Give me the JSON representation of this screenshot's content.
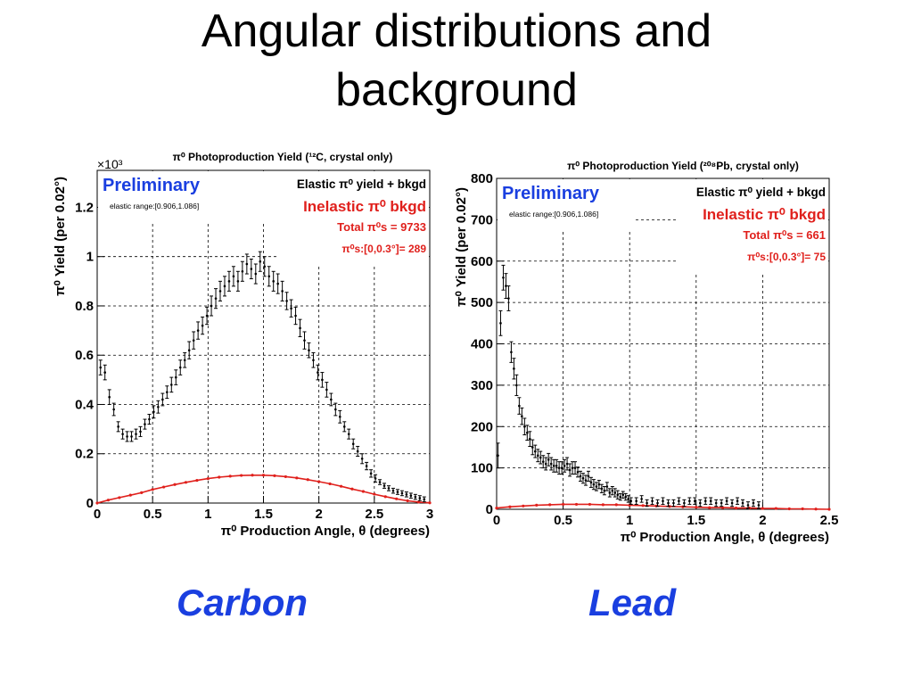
{
  "slide": {
    "title_line1": "Angular distributions and",
    "title_line2": "background"
  },
  "captions": {
    "carbon": "Carbon",
    "lead": "Lead"
  },
  "colors": {
    "points": "#000000",
    "inelastic": "#e0201c",
    "preliminary": "#1a3fe0",
    "caption": "#1a3fe0"
  },
  "chart_data": [
    {
      "type": "scatter",
      "title": "π⁰ Photoproduction Yield (¹²C, crystal only)",
      "xlabel": "π⁰ Production Angle, θ (degrees)",
      "ylabel": "π⁰ Yield (per 0.02°)",
      "y_multiplier": "×10³",
      "xlim": [
        0,
        3
      ],
      "ylim": [
        0,
        1.35
      ],
      "x_ticks": [
        0,
        0.5,
        1,
        1.5,
        2,
        2.5,
        3
      ],
      "x_tick_labels": [
        "0",
        "0.5",
        "1",
        "1.5",
        "2",
        "2.5",
        "3"
      ],
      "y_ticks": [
        0,
        0.2,
        0.4,
        0.6,
        0.8,
        1,
        1.2
      ],
      "y_tick_labels": [
        "0",
        "0.2",
        "0.4",
        "0.6",
        "0.8",
        "1",
        "1.2"
      ],
      "grid": "dashed",
      "legend": {
        "preliminary": "Preliminary",
        "elastic_range": "elastic range:[0.906,1.086]",
        "elastic": "Elastic π⁰ yield + bkgd",
        "inelastic": "Inelastic π⁰ bkgd",
        "total": "Total π⁰s = 9733",
        "small_angle": "π⁰s:[0,0.3°]= 289"
      },
      "series": [
        {
          "name": "Elastic π⁰ yield + bkgd",
          "x": [
            0.03,
            0.07,
            0.11,
            0.15,
            0.19,
            0.23,
            0.27,
            0.31,
            0.35,
            0.39,
            0.43,
            0.47,
            0.51,
            0.55,
            0.59,
            0.63,
            0.67,
            0.71,
            0.75,
            0.79,
            0.83,
            0.87,
            0.91,
            0.95,
            0.99,
            1.03,
            1.07,
            1.11,
            1.15,
            1.19,
            1.23,
            1.27,
            1.31,
            1.35,
            1.39,
            1.43,
            1.47,
            1.51,
            1.55,
            1.59,
            1.63,
            1.67,
            1.71,
            1.75,
            1.79,
            1.83,
            1.87,
            1.91,
            1.95,
            1.99,
            2.03,
            2.07,
            2.11,
            2.15,
            2.19,
            2.23,
            2.27,
            2.31,
            2.35,
            2.39,
            2.43,
            2.47,
            2.51,
            2.55,
            2.59,
            2.63,
            2.67,
            2.71,
            2.75,
            2.79,
            2.83,
            2.87,
            2.91,
            2.95
          ],
          "y": [
            0.55,
            0.53,
            0.43,
            0.38,
            0.31,
            0.28,
            0.27,
            0.27,
            0.28,
            0.29,
            0.32,
            0.34,
            0.37,
            0.39,
            0.42,
            0.45,
            0.48,
            0.51,
            0.55,
            0.58,
            0.62,
            0.66,
            0.7,
            0.72,
            0.76,
            0.8,
            0.83,
            0.86,
            0.88,
            0.9,
            0.92,
            0.9,
            0.94,
            0.97,
            0.95,
            0.93,
            0.98,
            0.96,
            0.92,
            0.9,
            0.89,
            0.86,
            0.82,
            0.79,
            0.76,
            0.71,
            0.66,
            0.62,
            0.58,
            0.53,
            0.5,
            0.46,
            0.42,
            0.38,
            0.35,
            0.31,
            0.28,
            0.24,
            0.21,
            0.18,
            0.15,
            0.12,
            0.1,
            0.085,
            0.07,
            0.06,
            0.05,
            0.045,
            0.04,
            0.035,
            0.03,
            0.025,
            0.02,
            0.015
          ],
          "err": [
            0.03,
            0.03,
            0.03,
            0.025,
            0.02,
            0.02,
            0.02,
            0.02,
            0.02,
            0.02,
            0.02,
            0.02,
            0.025,
            0.025,
            0.025,
            0.025,
            0.03,
            0.03,
            0.03,
            0.03,
            0.035,
            0.035,
            0.035,
            0.035,
            0.035,
            0.04,
            0.04,
            0.04,
            0.04,
            0.04,
            0.04,
            0.04,
            0.04,
            0.04,
            0.04,
            0.04,
            0.04,
            0.04,
            0.04,
            0.04,
            0.04,
            0.04,
            0.035,
            0.035,
            0.035,
            0.035,
            0.035,
            0.03,
            0.03,
            0.03,
            0.03,
            0.03,
            0.025,
            0.025,
            0.025,
            0.02,
            0.02,
            0.02,
            0.02,
            0.02,
            0.015,
            0.015,
            0.015,
            0.01,
            0.01,
            0.01,
            0.01,
            0.01,
            0.01,
            0.01,
            0.01,
            0.01,
            0.01,
            0.01
          ]
        },
        {
          "name": "Inelastic π⁰ bkgd",
          "x": [
            0,
            0.1,
            0.2,
            0.3,
            0.4,
            0.5,
            0.6,
            0.7,
            0.8,
            0.9,
            1.0,
            1.1,
            1.2,
            1.3,
            1.4,
            1.5,
            1.6,
            1.7,
            1.8,
            1.9,
            2.0,
            2.1,
            2.2,
            2.3,
            2.4,
            2.5,
            2.6,
            2.7,
            2.8,
            2.9,
            3.0
          ],
          "y": [
            0.0,
            0.012,
            0.022,
            0.032,
            0.042,
            0.055,
            0.065,
            0.075,
            0.084,
            0.092,
            0.099,
            0.105,
            0.109,
            0.112,
            0.113,
            0.113,
            0.111,
            0.107,
            0.102,
            0.095,
            0.087,
            0.078,
            0.068,
            0.057,
            0.047,
            0.036,
            0.026,
            0.017,
            0.009,
            0.004,
            0.001
          ]
        }
      ]
    },
    {
      "type": "scatter",
      "title": "π⁰ Photoproduction Yield (²⁰⁸Pb, crystal only)",
      "xlabel": "π⁰ Production Angle, θ (degrees)",
      "ylabel": "π⁰ Yield (per 0.02°)",
      "xlim": [
        0,
        2.5
      ],
      "ylim": [
        0,
        800
      ],
      "x_ticks": [
        0,
        0.5,
        1,
        1.5,
        2,
        2.5
      ],
      "x_tick_labels": [
        "0",
        "0.5",
        "1",
        "1.5",
        "2",
        "2.5"
      ],
      "y_ticks": [
        0,
        100,
        200,
        300,
        400,
        500,
        600,
        700,
        800
      ],
      "y_tick_labels": [
        "0",
        "100",
        "200",
        "300",
        "400",
        "500",
        "600",
        "700",
        "800"
      ],
      "grid": "dashed",
      "legend": {
        "preliminary": "Preliminary",
        "elastic_range": "elastic range:[0.906,1.086]",
        "elastic": "Elastic π⁰ yield + bkgd",
        "inelastic": "Inelastic π⁰ bkgd",
        "total": "Total π⁰s = 661",
        "small_angle": "π⁰s:[0,0.3°]= 75"
      },
      "series": [
        {
          "name": "Elastic π⁰ yield + bkgd",
          "x": [
            0.01,
            0.03,
            0.05,
            0.07,
            0.09,
            0.11,
            0.13,
            0.15,
            0.17,
            0.19,
            0.21,
            0.23,
            0.25,
            0.27,
            0.29,
            0.31,
            0.33,
            0.35,
            0.37,
            0.39,
            0.41,
            0.43,
            0.45,
            0.47,
            0.49,
            0.51,
            0.53,
            0.55,
            0.57,
            0.59,
            0.61,
            0.63,
            0.65,
            0.67,
            0.69,
            0.71,
            0.73,
            0.75,
            0.77,
            0.79,
            0.81,
            0.83,
            0.85,
            0.87,
            0.89,
            0.91,
            0.93,
            0.95,
            0.97,
            0.99,
            1.01,
            1.05,
            1.09,
            1.13,
            1.17,
            1.21,
            1.25,
            1.29,
            1.33,
            1.37,
            1.41,
            1.45,
            1.49,
            1.53,
            1.57,
            1.61,
            1.65,
            1.69,
            1.73,
            1.77,
            1.81,
            1.85,
            1.89,
            1.93,
            1.97
          ],
          "y": [
            130,
            450,
            560,
            540,
            510,
            380,
            340,
            300,
            250,
            225,
            200,
            185,
            170,
            150,
            140,
            130,
            125,
            115,
            110,
            120,
            110,
            105,
            105,
            100,
            100,
            105,
            110,
            95,
            100,
            100,
            90,
            80,
            75,
            70,
            80,
            65,
            60,
            55,
            60,
            50,
            45,
            55,
            40,
            45,
            40,
            35,
            30,
            35,
            30,
            25,
            20,
            20,
            25,
            15,
            20,
            15,
            20,
            15,
            15,
            20,
            15,
            20,
            20,
            15,
            20,
            20,
            15,
            15,
            20,
            15,
            20,
            15,
            10,
            15,
            10
          ],
          "err": [
            30,
            30,
            30,
            30,
            30,
            25,
            25,
            25,
            20,
            20,
            20,
            18,
            18,
            18,
            15,
            15,
            15,
            15,
            15,
            15,
            15,
            15,
            15,
            15,
            15,
            15,
            15,
            15,
            15,
            15,
            12,
            12,
            12,
            12,
            12,
            12,
            12,
            10,
            10,
            10,
            10,
            10,
            10,
            10,
            10,
            10,
            8,
            8,
            8,
            8,
            8,
            8,
            8,
            8,
            8,
            8,
            8,
            8,
            8,
            8,
            8,
            8,
            8,
            8,
            8,
            8,
            8,
            8,
            8,
            8,
            8,
            8,
            8,
            8,
            8
          ]
        },
        {
          "name": "Inelastic π⁰ bkgd",
          "x": [
            0,
            0.1,
            0.2,
            0.3,
            0.4,
            0.5,
            0.6,
            0.7,
            0.8,
            0.9,
            1.0,
            1.1,
            1.2,
            1.3,
            1.4,
            1.5,
            1.6,
            1.7,
            1.8,
            1.9,
            2.0,
            2.1,
            2.2,
            2.3,
            2.4,
            2.5
          ],
          "y": [
            3,
            6,
            8,
            10,
            11,
            12,
            12,
            12,
            11,
            11,
            10,
            9,
            8,
            7,
            6,
            5,
            4,
            4,
            3,
            3,
            2,
            2,
            1,
            1,
            0.5,
            0
          ]
        }
      ]
    }
  ]
}
